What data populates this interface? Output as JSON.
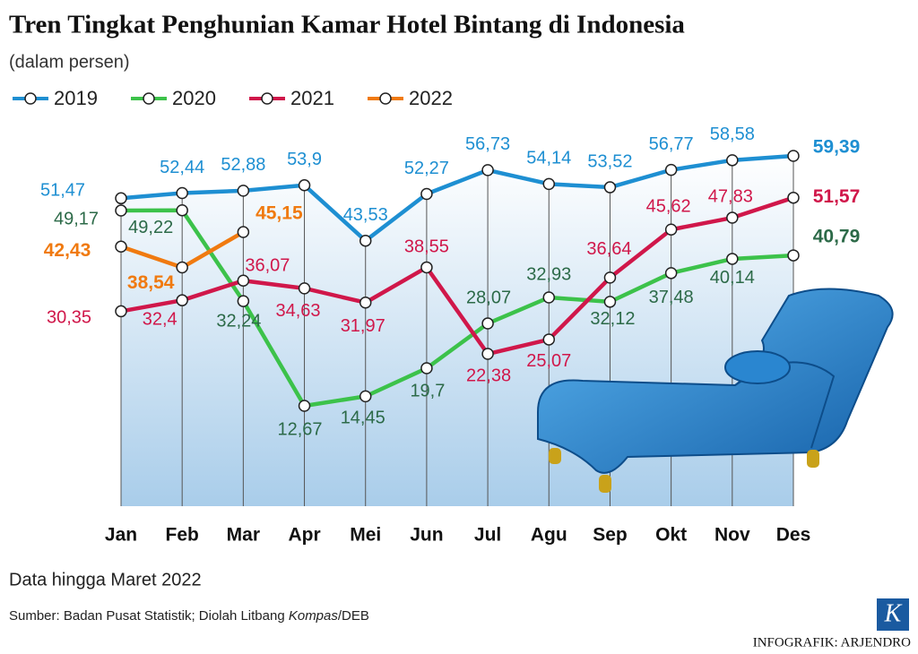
{
  "chart_data": {
    "type": "line",
    "title": "Tren Tingkat Penghunian Kamar Hotel Bintang di Indonesia",
    "subtitle": "(dalam persen)",
    "categories": [
      "Jan",
      "Feb",
      "Mar",
      "Apr",
      "Mei",
      "Jun",
      "Jul",
      "Agu",
      "Sep",
      "Okt",
      "Nov",
      "Des"
    ],
    "series": [
      {
        "name": "2019",
        "color": "#1e8fd2",
        "label_color": "#1e8fd2",
        "values": [
          51.47,
          52.44,
          52.88,
          53.9,
          43.53,
          52.27,
          56.73,
          54.14,
          53.52,
          56.77,
          58.58,
          59.39
        ],
        "value_labels": [
          "51,47",
          "52,44",
          "52,88",
          "53,9",
          "43,53",
          "52,27",
          "56,73",
          "54,14",
          "53,52",
          "56,77",
          "58,58",
          "59,39"
        ]
      },
      {
        "name": "2020",
        "color": "#3cc24a",
        "label_color": "#2c6a48",
        "values": [
          49.17,
          49.22,
          32.24,
          12.67,
          14.45,
          19.7,
          28.07,
          32.93,
          32.12,
          37.48,
          40.14,
          40.79
        ],
        "value_labels": [
          "49,17",
          "49,22",
          "32,24",
          "12,67",
          "14,45",
          "19,7",
          "28,07",
          "32,93",
          "32,12",
          "37,48",
          "40,14",
          "40,79"
        ]
      },
      {
        "name": "2021",
        "color": "#d0174a",
        "label_color": "#d0174a",
        "values": [
          30.35,
          32.4,
          36.07,
          34.63,
          31.97,
          38.55,
          22.38,
          25.07,
          36.64,
          45.62,
          47.83,
          51.57
        ],
        "value_labels": [
          "30,35",
          "32,4",
          "36,07",
          "34,63",
          "31,97",
          "38,55",
          "22,38",
          "25,07",
          "36,64",
          "45,62",
          "47,83",
          "51,57"
        ]
      },
      {
        "name": "2022",
        "color": "#f07a10",
        "label_color": "#f07a10",
        "values": [
          42.43,
          38.54,
          45.15,
          null,
          null,
          null,
          null,
          null,
          null,
          null,
          null,
          null
        ],
        "value_labels": [
          "42,43",
          "38,54",
          "45,15",
          null,
          null,
          null,
          null,
          null,
          null,
          null,
          null,
          null
        ]
      }
    ],
    "note": "Data hingga Maret 2022",
    "source": [
      "Sumber: Badan Pusat Statistik; Diolah Litbang ",
      "Kompas",
      "/DEB"
    ],
    "credit": "INFOGRAFIK: ARJENDRO",
    "logo": "K"
  }
}
